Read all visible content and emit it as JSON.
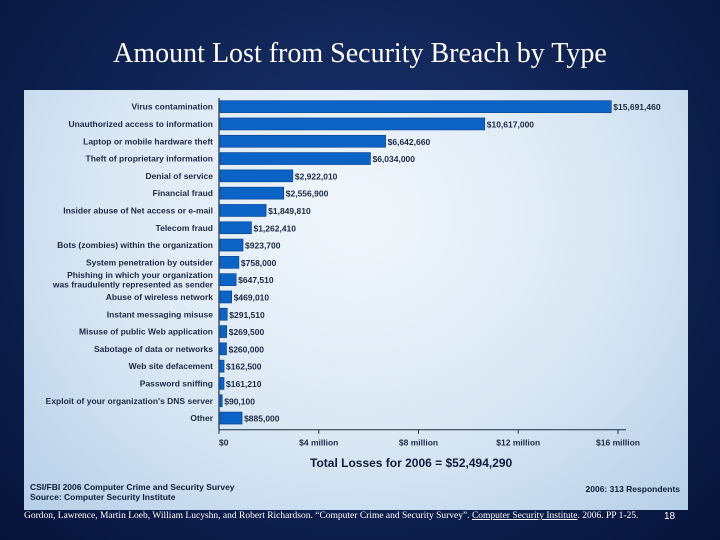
{
  "slide": {
    "title": "Amount Lost from Security Breach by Type",
    "page_number": "18"
  },
  "citation": {
    "part1": "Gordon, Lawrence, Martin Loeb, William Lucyshn, and Robert Richardson. “Computer Crime and Security Survey”. ",
    "underlined": "Computer Security Institute",
    "part2": ". 2006. PP 1-25."
  },
  "chart_data": {
    "type": "bar",
    "orientation": "horizontal",
    "categories": [
      "Virus contamination",
      "Unauthorized access to information",
      "Laptop or mobile hardware theft",
      "Theft of proprietary information",
      "Denial of service",
      "Financial fraud",
      "Insider abuse of Net access or e-mail",
      "Telecom fraud",
      "Bots (zombies) within the organization",
      "System penetration by outsider",
      "Phishing in which your organization was fraudulently represented as sender",
      "Abuse of wireless network",
      "Instant messaging misuse",
      "Misuse of public Web application",
      "Sabotage of data or networks",
      "Web site defacement",
      "Password sniffing",
      "Exploit of your organization's DNS server",
      "Other"
    ],
    "category_lines": [
      [
        "Virus contamination"
      ],
      [
        "Unauthorized access to information"
      ],
      [
        "Laptop or mobile hardware theft"
      ],
      [
        "Theft of proprietary information"
      ],
      [
        "Denial of service"
      ],
      [
        "Financial fraud"
      ],
      [
        "Insider abuse of Net access or e-mail"
      ],
      [
        "Telecom fraud"
      ],
      [
        "Bots (zombies) within the organization"
      ],
      [
        "System penetration by outsider"
      ],
      [
        "Phishing in which your organization",
        "was fraudulently represented as sender"
      ],
      [
        "Abuse of wireless network"
      ],
      [
        "Instant messaging misuse"
      ],
      [
        "Misuse of public Web application"
      ],
      [
        "Sabotage of data or networks"
      ],
      [
        "Web site defacement"
      ],
      [
        "Password sniffing"
      ],
      [
        "Exploit of your organization's DNS server"
      ],
      [
        "Other"
      ]
    ],
    "values": [
      15691460,
      10617000,
      6642660,
      6034000,
      2922010,
      2556900,
      1849810,
      1262410,
      923700,
      758000,
      647510,
      469010,
      291510,
      269500,
      260000,
      162500,
      161210,
      90100,
      885000
    ],
    "value_labels": [
      "$15,691,460",
      "$10,617,000",
      "$6,642,660",
      "$6,034,000",
      "$2,922,010",
      "$2,556,900",
      "$1,849,810",
      "$1,262,410",
      "$923,700",
      "$758,000",
      "$647,510",
      "$469,010",
      "$291,510",
      "$269,500",
      "$260,000",
      "$162,500",
      "$161,210",
      "$90,100",
      "$885,000"
    ],
    "xlim": [
      0,
      16000000
    ],
    "xticks": [
      0,
      4000000,
      8000000,
      12000000,
      16000000
    ],
    "xtick_labels": [
      "$0",
      "$4 million",
      "$8 million",
      "$12 million",
      "$16 million"
    ],
    "total_label": "Total Losses for 2006 = $52,494,290",
    "source_line1": "CSI/FBI 2006 Computer Crime and Security Survey",
    "source_line2": "Source: Computer Security Institute",
    "respondents": "2006: 313 Respondents",
    "colors": {
      "bar": "#0b63c5",
      "bar_edge": "#063e86"
    }
  }
}
